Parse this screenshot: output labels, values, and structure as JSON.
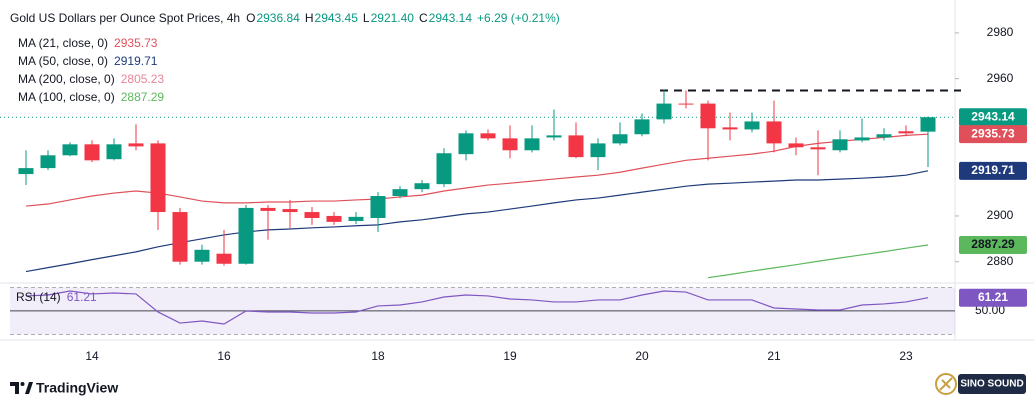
{
  "chart_data": {
    "type": "candlestick",
    "title": "Gold US Dollars per Ounce Spot Prices, 4h",
    "header": [
      {
        "label": "O",
        "value": "2936.84"
      },
      {
        "label": "H",
        "value": "2943.45"
      },
      {
        "label": "L",
        "value": "2921.40"
      },
      {
        "label": "C",
        "value": "2943.14"
      },
      {
        "label": null,
        "value": "+6.29 (+0.21%)"
      }
    ],
    "categories": [
      null,
      null,
      null,
      "14",
      null,
      null,
      null,
      null,
      null,
      "16",
      null,
      null,
      null,
      null,
      null,
      null,
      "18",
      null,
      null,
      null,
      null,
      null,
      "19",
      null,
      null,
      null,
      null,
      null,
      "20",
      null,
      null,
      null,
      null,
      null,
      "21",
      null,
      null,
      null,
      null,
      null,
      "23",
      null
    ],
    "open": [
      2918.3,
      2920.9,
      2926.5,
      2931.3,
      2924.8,
      2931.7,
      2931.7,
      2901.7,
      2880.0,
      2883.5,
      2879.1,
      2903.5,
      2903.0,
      2901.7,
      2900.0,
      2897.8,
      2899.1,
      2908.7,
      2911.7,
      2913.9,
      2927.0,
      2936.1,
      2933.9,
      2928.7,
      2934.3,
      2935.2,
      2925.7,
      2931.7,
      2935.7,
      2942.2,
      2949.1,
      2949.1,
      2938.7,
      2937.8,
      2941.3,
      2931.7,
      2930.0,
      2928.7,
      2933.0,
      2934.3,
      2937.0,
      2936.84
    ],
    "high": [
      2928.7,
      2928.7,
      2932.2,
      2933.0,
      2933.9,
      2940.0,
      2933.0,
      2903.5,
      2887.4,
      2893.9,
      2904.8,
      2904.8,
      2907.0,
      2903.9,
      2901.7,
      2901.7,
      2910.4,
      2913.0,
      2915.7,
      2929.6,
      2937.4,
      2937.8,
      2939.6,
      2939.6,
      2946.5,
      2940.9,
      2933.9,
      2940.9,
      2944.8,
      2954.8,
      2954.8,
      2950.4,
      2945.2,
      2945.2,
      2950.4,
      2934.3,
      2937.4,
      2937.4,
      2942.6,
      2938.3,
      2939.6,
      2943.45
    ],
    "low": [
      2913.5,
      2920.0,
      2926.1,
      2923.5,
      2924.3,
      2928.7,
      2893.9,
      2878.7,
      2878.7,
      2878.3,
      2878.7,
      2889.6,
      2894.8,
      2896.1,
      2896.1,
      2896.5,
      2893.0,
      2907.8,
      2910.4,
      2912.6,
      2924.3,
      2933.0,
      2925.2,
      2927.8,
      2933.0,
      2925.2,
      2920.0,
      2930.9,
      2934.8,
      2940.4,
      2947.0,
      2924.3,
      2933.0,
      2936.5,
      2927.8,
      2926.5,
      2917.8,
      2927.8,
      2932.2,
      2933.0,
      2934.8,
      2921.4
    ],
    "close": [
      2920.9,
      2926.5,
      2931.3,
      2924.3,
      2931.3,
      2930.4,
      2901.7,
      2880.0,
      2885.2,
      2879.1,
      2903.5,
      2902.2,
      2901.7,
      2899.1,
      2897.4,
      2899.6,
      2908.7,
      2911.7,
      2914.3,
      2927.4,
      2936.1,
      2933.9,
      2928.7,
      2933.9,
      2935.2,
      2925.7,
      2931.7,
      2935.7,
      2942.2,
      2949.1,
      2948.7,
      2938.3,
      2937.8,
      2941.3,
      2931.7,
      2930.0,
      2929.1,
      2933.5,
      2934.3,
      2935.7,
      2936.1,
      2943.14
    ],
    "up_color": "#089981",
    "down_color": "#f23645",
    "ylim": [
      2872,
      2990
    ],
    "yticks": [
      2880,
      2900,
      2960,
      2980
    ],
    "level": 2954.8,
    "moving_averages": [
      {
        "name": "MA (21, close, 0)",
        "value": 2935.73,
        "color": "#e0505a",
        "values": [
          2904.3,
          2905.2,
          2907.0,
          2908.7,
          2910.0,
          2910.9,
          2910.0,
          2908.3,
          2906.5,
          2905.7,
          2905.7,
          2906.1,
          2906.1,
          2906.5,
          2906.5,
          2907.0,
          2907.4,
          2908.3,
          2909.1,
          2910.9,
          2912.2,
          2913.5,
          2914.3,
          2915.2,
          2916.1,
          2917.0,
          2917.8,
          2919.1,
          2920.9,
          2922.6,
          2924.3,
          2925.2,
          2926.1,
          2927.0,
          2928.3,
          2930.4,
          2931.7,
          2932.6,
          2933.5,
          2934.3,
          2935.2,
          2935.73
        ]
      },
      {
        "name": "MA (50, close, 0)",
        "value": 2919.71,
        "color": "#1e3a7b",
        "values": [
          2875.7,
          2877.4,
          2879.1,
          2880.9,
          2882.6,
          2884.3,
          2886.5,
          2888.3,
          2890.0,
          2891.7,
          2893.0,
          2893.9,
          2894.3,
          2894.8,
          2895.2,
          2895.7,
          2896.1,
          2897.4,
          2898.3,
          2899.6,
          2900.9,
          2901.7,
          2903.0,
          2904.3,
          2905.7,
          2907.0,
          2907.8,
          2909.1,
          2910.4,
          2911.7,
          2913.0,
          2913.9,
          2914.3,
          2914.8,
          2915.2,
          2915.7,
          2915.7,
          2916.1,
          2916.5,
          2917.0,
          2917.8,
          2919.71
        ]
      },
      {
        "name": "MA (200, close, 0)",
        "value": 2805.23,
        "color": "#e8869a"
      },
      {
        "name": "MA (100, close, 0)",
        "value": 2887.29,
        "color": "#5cb85c",
        "label_text_color": "#131722",
        "values": [
          null,
          null,
          null,
          null,
          null,
          null,
          null,
          null,
          null,
          null,
          null,
          null,
          null,
          null,
          null,
          null,
          null,
          null,
          null,
          null,
          null,
          null,
          null,
          null,
          null,
          null,
          null,
          null,
          null,
          null,
          null,
          2873.0,
          2874.4,
          2875.9,
          2877.3,
          2878.7,
          2880.2,
          2881.6,
          2883.0,
          2884.4,
          2885.9,
          2887.29
        ]
      }
    ],
    "rsi": {
      "name": "RSI (14)",
      "value": 61.21,
      "color": "#7e57c2",
      "values": [
        62.7,
        63.5,
        66.9,
        64.4,
        65.2,
        64.4,
        49.1,
        39.7,
        41.4,
        38.9,
        49.9,
        49.1,
        49.1,
        48.2,
        48.2,
        49.1,
        54.2,
        55.0,
        57.6,
        61.8,
        63.5,
        62.7,
        60.1,
        59.3,
        57.6,
        57.6,
        59.3,
        59.3,
        63.5,
        66.9,
        66.0,
        59.3,
        59.3,
        59.3,
        52.5,
        51.6,
        50.8,
        50.8,
        55.0,
        55.9,
        57.6,
        61.21
      ],
      "ylim": [
        27,
        72
      ],
      "yticks": [
        {
          "value": 50,
          "label": "50.00"
        }
      ],
      "bands": [
        30,
        70
      ]
    },
    "footer": "TradingView",
    "watermark": "SINO SOUND"
  }
}
